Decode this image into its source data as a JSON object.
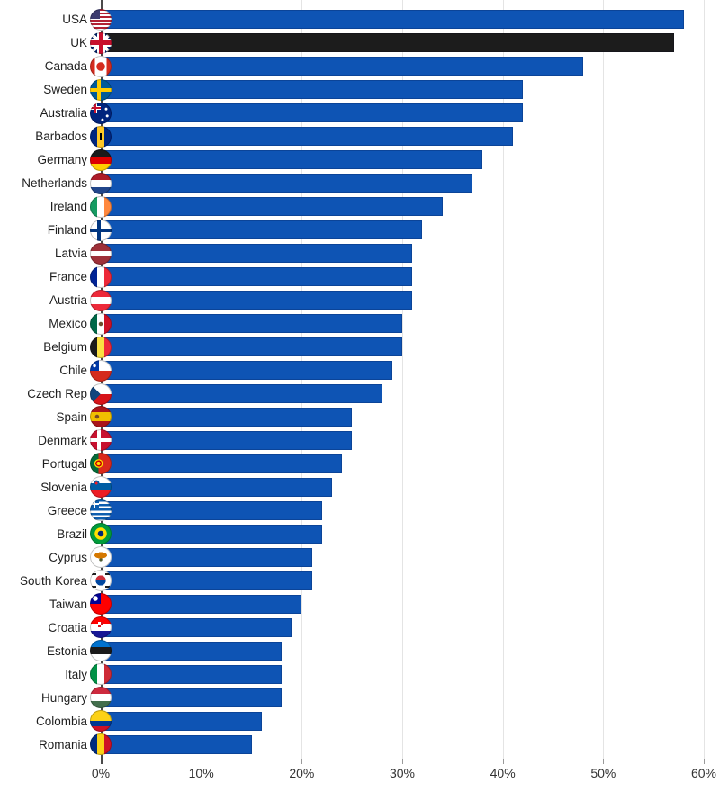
{
  "chart_data": {
    "type": "bar",
    "orientation": "horizontal",
    "title": "",
    "xlabel": "",
    "ylabel": "",
    "value_unit": "%",
    "xlim": [
      0,
      60
    ],
    "grid": true,
    "x_ticks": [
      {
        "value": 0,
        "label": "0%"
      },
      {
        "value": 10,
        "label": "10%"
      },
      {
        "value": 20,
        "label": "20%"
      },
      {
        "value": 30,
        "label": "30%"
      },
      {
        "value": 40,
        "label": "40%"
      },
      {
        "value": 50,
        "label": "50%"
      },
      {
        "value": 60,
        "label": "60%"
      }
    ],
    "default_bar_color": "#0e54b4",
    "highlight_bar_color": "#1c1c1c",
    "highlighted_country": "UK",
    "axis_colors": {
      "gridline": "#e4e4e4",
      "zero_line": "#4a4a4a",
      "tick": "#9a9a9a",
      "tick_text": "#333333"
    },
    "countries": [
      {
        "name": "USA",
        "value": 58,
        "flag": {
          "icon": "usa-flag-icon",
          "css": "linear-gradient(#3c3b6e,#3c3b6e) 0 0/11px 11px no-repeat, repeating-linear-gradient(#b22234 0 2px, #ffffff 2px 4px)"
        }
      },
      {
        "name": "UK",
        "value": 57,
        "flag": {
          "icon": "uk-flag-icon",
          "css": "linear-gradient(#c8102e,#c8102e) 50% 50%/100% 5px no-repeat, linear-gradient(#c8102e,#c8102e) 50% 50%/5px 100% no-repeat, linear-gradient(#ffffff,#ffffff) 50% 50%/100% 9px no-repeat, linear-gradient(#ffffff,#ffffff) 50% 50%/9px 100% no-repeat, linear-gradient(45deg, transparent 44%, #ffffff 44% 56%, transparent 56%), linear-gradient(-45deg, transparent 44%, #ffffff 44% 56%, transparent 56%), #012169"
        }
      },
      {
        "name": "Canada",
        "value": 48,
        "flag": {
          "icon": "canada-flag-icon",
          "css": "radial-gradient(circle at 50% 50%, #d52b1e 4.5px, transparent 5px), linear-gradient(to right, #d52b1e 22%, #ffffff 22% 78%, #d52b1e 78%)"
        }
      },
      {
        "name": "Sweden",
        "value": 42,
        "flag": {
          "icon": "sweden-flag-icon",
          "css": "linear-gradient(#fecc00,#fecc00) 8px 0/4px 100% no-repeat, linear-gradient(#fecc00,#fecc00) 0 10px/100% 4px no-repeat, #005b99"
        }
      },
      {
        "name": "Australia",
        "value": 42,
        "flag": {
          "icon": "australia-flag-icon",
          "css": "radial-gradient(circle at 75% 30%, #ffffff 1.2px, transparent 1.8px), radial-gradient(circle at 80% 62%, #ffffff 1.2px, transparent 1.8px), radial-gradient(circle at 58% 80%, #ffffff 1.2px, transparent 1.8px), linear-gradient(#c8102e,#c8102e) 0 5px/12px 2px no-repeat, linear-gradient(#c8102e,#c8102e) 5px 0/2px 12px no-repeat, linear-gradient(#ffffff,#ffffff) 0 4px/12px 4px no-repeat, linear-gradient(#ffffff,#ffffff) 4px 0/4px 12px no-repeat, #00247d"
        }
      },
      {
        "name": "Barbados",
        "value": 41,
        "flag": {
          "icon": "barbados-flag-icon",
          "css": "linear-gradient(#000000,#000000) 50% 8px/2px 8px no-repeat, linear-gradient(to right, #00267f 33%, #ffc726 33% 67%, #00267f 67%)"
        }
      },
      {
        "name": "Germany",
        "value": 38,
        "flag": {
          "icon": "germany-flag-icon",
          "css": "linear-gradient(#1a1a1a 33%, #dd0000 33% 66%, #ffce00 66%)"
        }
      },
      {
        "name": "Netherlands",
        "value": 37,
        "flag": {
          "icon": "netherlands-flag-icon",
          "css": "linear-gradient(#ae1c28 33%, #ffffff 33% 66%, #21468b 66%)"
        }
      },
      {
        "name": "Ireland",
        "value": 34,
        "flag": {
          "icon": "ireland-flag-icon",
          "css": "linear-gradient(to right, #169b62 33%, #ffffff 33% 67%, #ff883e 67%)"
        }
      },
      {
        "name": "Finland",
        "value": 32,
        "flag": {
          "icon": "finland-flag-icon",
          "css": "linear-gradient(#003580,#003580) 8px 0/4px 100% no-repeat, linear-gradient(#003580,#003580) 0 10px/100% 4px no-repeat, #ffffff"
        }
      },
      {
        "name": "Latvia",
        "value": 31,
        "flag": {
          "icon": "latvia-flag-icon",
          "css": "linear-gradient(#9e3039 38%, #ffffff 38% 62%, #9e3039 62%)"
        }
      },
      {
        "name": "France",
        "value": 31,
        "flag": {
          "icon": "france-flag-icon",
          "css": "linear-gradient(to right, #002395 33%, #ffffff 33% 67%, #ed2939 67%)"
        }
      },
      {
        "name": "Austria",
        "value": 31,
        "flag": {
          "icon": "austria-flag-icon",
          "css": "linear-gradient(#ed2939 33%, #ffffff 33% 67%, #ed2939 67%)"
        }
      },
      {
        "name": "Mexico",
        "value": 30,
        "flag": {
          "icon": "mexico-flag-icon",
          "css": "radial-gradient(circle at 50% 50%, #6b4f2e 2px, transparent 2.5px), linear-gradient(to right, #006847 33%, #ffffff 33% 67%, #ce1126 67%)"
        }
      },
      {
        "name": "Belgium",
        "value": 30,
        "flag": {
          "icon": "belgium-flag-icon",
          "css": "linear-gradient(to right, #1a1a1a 33%, #fae042 33% 67%, #ed2939 67%)"
        }
      },
      {
        "name": "Chile",
        "value": 29,
        "flag": {
          "icon": "chile-flag-icon",
          "css": "radial-gradient(circle at 21% 27%, #ffffff 1.5px, transparent 2px), linear-gradient(#0039a6,#0039a6) 0 0/10px 12px no-repeat, linear-gradient(#ffffff 50%, #d52b1e 50%)"
        }
      },
      {
        "name": "Czech Rep",
        "value": 28,
        "flag": {
          "icon": "czech-rep-flag-icon",
          "css": "linear-gradient(to top right, #11457e 49.5%, transparent 50%) 0 0/12px 12px no-repeat, linear-gradient(to bottom right, #11457e 49.5%, transparent 50%) 0 12px/12px 12px no-repeat, linear-gradient(#ffffff 50%, #d7141a 50%)"
        }
      },
      {
        "name": "Spain",
        "value": 25,
        "flag": {
          "icon": "spain-flag-icon",
          "css": "radial-gradient(circle at 33% 50%, #7a4b27 2px, transparent 2.5px), linear-gradient(#aa151b 30%, #f1bf00 30% 70%, #aa151b 70%)"
        }
      },
      {
        "name": "Denmark",
        "value": 25,
        "flag": {
          "icon": "denmark-flag-icon",
          "css": "linear-gradient(#ffffff,#ffffff) 8px 0/4px 100% no-repeat, linear-gradient(#ffffff,#ffffff) 0 10px/100% 4px no-repeat, #c8102e"
        }
      },
      {
        "name": "Portugal",
        "value": 24,
        "flag": {
          "icon": "portugal-flag-icon",
          "css": "radial-gradient(circle at 40% 50%, #ffde00 2px, #cc0000 2px 3.5px, #ffde00 3.5px 4.5px, transparent 5px), linear-gradient(to right, #046a38 40%, #da291c 40%)"
        }
      },
      {
        "name": "Slovenia",
        "value": 23,
        "flag": {
          "icon": "slovenia-flag-icon",
          "css": "radial-gradient(circle at 30% 33%, #ed1c24 1.5px, #005da4 1.5px 3px, transparent 3.5px), linear-gradient(#ffffff 33%, #005da4 33% 67%, #ed1c24 67%)"
        }
      },
      {
        "name": "Greece",
        "value": 22,
        "flag": {
          "icon": "greece-flag-icon",
          "css": "linear-gradient(#ffffff,#ffffff) 4px 0/2px 10px no-repeat, linear-gradient(#ffffff,#ffffff) 0 4px/10px 2px no-repeat, linear-gradient(#0d5eaf,#0d5eaf) 0 0/10px 10px no-repeat, repeating-linear-gradient(#0d5eaf 0 2.5px, #ffffff 2.5px 5px)"
        }
      },
      {
        "name": "Brazil",
        "value": 22,
        "flag": {
          "icon": "brazil-flag-icon",
          "css": "radial-gradient(circle at 50% 50%, #002776 3px, transparent 3.5px), radial-gradient(circle at 50% 50%, #ffdf00 6.5px, transparent 7px), #009c3b"
        }
      },
      {
        "name": "Cyprus",
        "value": 21,
        "flag": {
          "icon": "cyprus-flag-icon",
          "css": "radial-gradient(7px 3.5px at 50% 42%, #d57800 98%, transparent 100%), radial-gradient(circle at 50% 62%, #4e5b31 1.5px, transparent 2px), #ffffff"
        }
      },
      {
        "name": "South Korea",
        "value": 21,
        "flag": {
          "icon": "south-korea-flag-icon",
          "css": "linear-gradient(#222222,#222222) 2px 4px/5px 2px no-repeat, linear-gradient(#222222,#222222) 17px 4px/5px 2px no-repeat, linear-gradient(#222222,#222222) 2px 18px/5px 2px no-repeat, linear-gradient(#222222,#222222) 17px 18px/5px 2px no-repeat, radial-gradient(circle at 50% 50%, transparent 5.5px, #ffffff 5.8px), linear-gradient(#cd2e3a 50%, #0047a0 50%)"
        }
      },
      {
        "name": "Taiwan",
        "value": 20,
        "flag": {
          "icon": "taiwan-flag-icon",
          "css": "radial-gradient(circle at 25% 25%, #ffffff 2.5px, transparent 3px), linear-gradient(#000095,#000095) 0 0/12px 12px no-repeat, #fe0000"
        }
      },
      {
        "name": "Croatia",
        "value": 19,
        "flag": {
          "icon": "croatia-flag-icon",
          "css": "conic-gradient(#d7141a 0 25%, #ffffff 0 50%, #d7141a 0 75%, #ffffff 0) 9px 6px/6px 6px no-repeat, linear-gradient(#ff0000 33%, #ffffff 33% 67%, #171796 67%)"
        }
      },
      {
        "name": "Estonia",
        "value": 18,
        "flag": {
          "icon": "estonia-flag-icon",
          "css": "linear-gradient(#0072ce 33%, #1a1a1a 33% 67%, #ffffff 67%)"
        }
      },
      {
        "name": "Italy",
        "value": 18,
        "flag": {
          "icon": "italy-flag-icon",
          "css": "linear-gradient(to right, #009246 33%, #ffffff 33% 67%, #ce2b37 67%)"
        }
      },
      {
        "name": "Hungary",
        "value": 18,
        "flag": {
          "icon": "hungary-flag-icon",
          "css": "linear-gradient(#cd2a3e 33%, #ffffff 33% 67%, #436f4d 67%)"
        }
      },
      {
        "name": "Colombia",
        "value": 16,
        "flag": {
          "icon": "colombia-flag-icon",
          "css": "linear-gradient(#fcd116 50%, #003893 50% 75%, #ce1126 75%)"
        }
      },
      {
        "name": "Romania",
        "value": 15,
        "flag": {
          "icon": "romania-flag-icon",
          "css": "linear-gradient(to right, #002b7f 33%, #fcd116 33% 67%, #ce1126 67%)"
        }
      }
    ]
  }
}
